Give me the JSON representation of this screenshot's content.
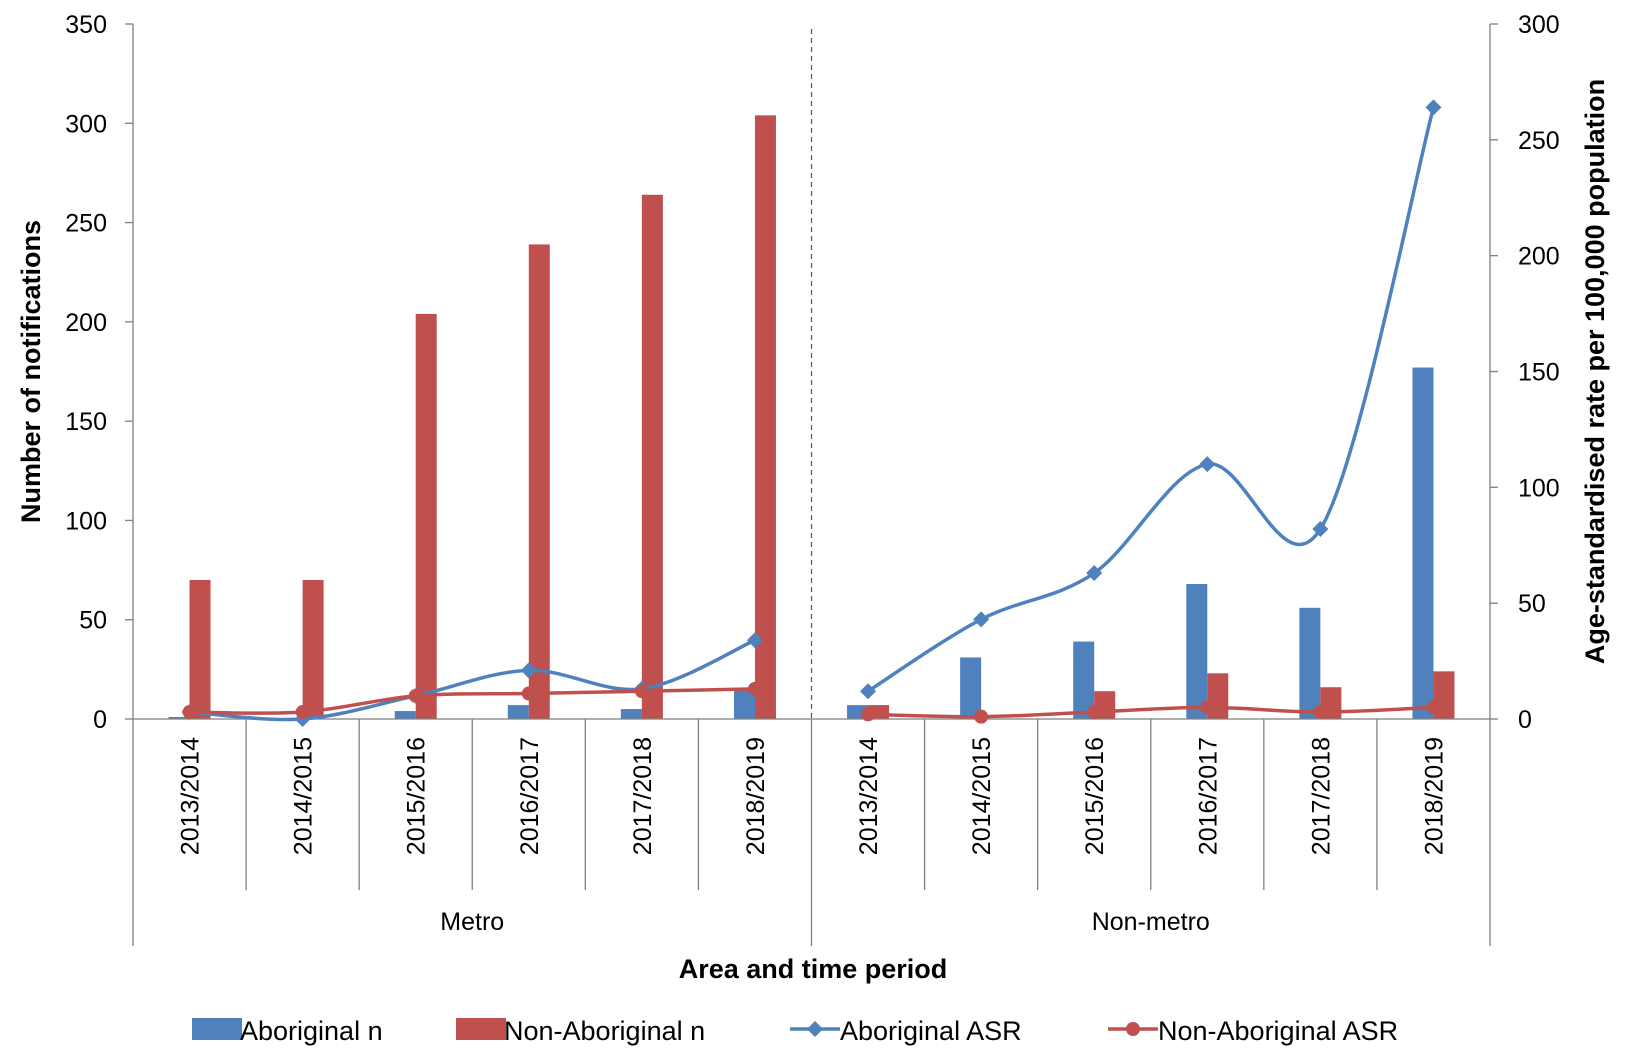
{
  "chart_data": {
    "type": "bar",
    "xlabel": "Area and time period",
    "ylabel": "Number of notifications",
    "y2label": "Age-standardised rate per 100,000 population",
    "ylim": [
      0,
      350
    ],
    "y_ticks": [
      "0",
      "50",
      "100",
      "150",
      "200",
      "250",
      "300",
      "350"
    ],
    "y2lim": [
      0,
      300
    ],
    "y2_ticks": [
      "0",
      "50",
      "100",
      "150",
      "200",
      "250",
      "300"
    ],
    "grid": false,
    "legend_position": "bottom",
    "groups": [
      {
        "label": "Metro",
        "categories": [
          "2013/2014",
          "2014/2015",
          "2015/2016",
          "2016/2017",
          "2017/2018",
          "2018/2019"
        ]
      },
      {
        "label": "Non-metro",
        "categories": [
          "2013/2014",
          "2014/2015",
          "2015/2016",
          "2016/2017",
          "2017/2018",
          "2018/2019"
        ]
      }
    ],
    "series": [
      {
        "name": "Aboriginal n",
        "type": "bar",
        "axis": "left",
        "color": "#4F81BD",
        "values": [
          1,
          0,
          4,
          7,
          5,
          15,
          7,
          31,
          39,
          68,
          56,
          177
        ]
      },
      {
        "name": "Non-Aboriginal n",
        "type": "bar",
        "axis": "left",
        "color": "#C0504D",
        "values": [
          70,
          70,
          204,
          239,
          264,
          304,
          7,
          0,
          14,
          23,
          16,
          24
        ]
      },
      {
        "name": "Aboriginal ASR",
        "type": "line",
        "marker": "diamond",
        "axis": "right",
        "color": "#4F81BD",
        "values": [
          3,
          0,
          10,
          21,
          13,
          34,
          12,
          43,
          63,
          110,
          82,
          264
        ]
      },
      {
        "name": "Non-Aboriginal ASR",
        "type": "line",
        "marker": "circle",
        "axis": "right",
        "color": "#C0504D",
        "values": [
          3,
          3,
          10,
          11,
          12,
          13,
          2,
          1,
          3,
          5,
          3,
          5
        ]
      }
    ]
  }
}
